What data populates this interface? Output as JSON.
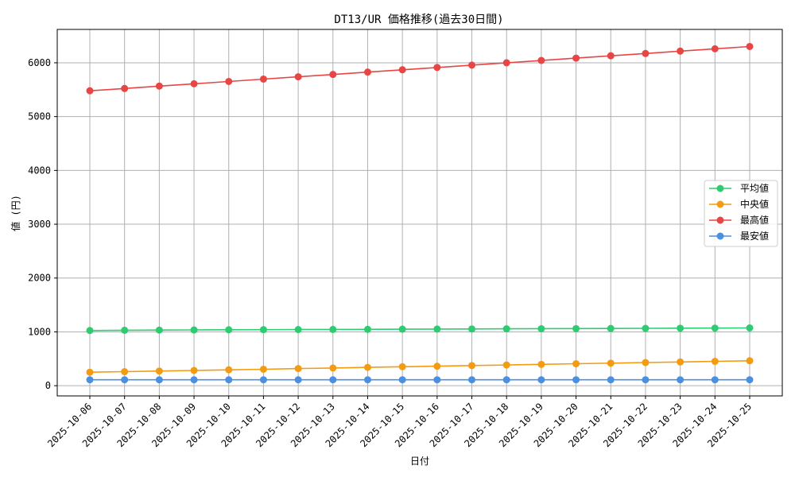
{
  "chart_data": {
    "type": "line",
    "title": "DT13/UR 価格推移(過去30日間)",
    "xlabel": "日付",
    "ylabel": "値 (円)",
    "ylim": [
      -190,
      6620
    ],
    "yticks": [
      0,
      1000,
      2000,
      3000,
      4000,
      5000,
      6000
    ],
    "grid": true,
    "legend_position": "center-right",
    "categories": [
      "2025-10-06",
      "2025-10-07",
      "2025-10-08",
      "2025-10-09",
      "2025-10-10",
      "2025-10-11",
      "2025-10-12",
      "2025-10-13",
      "2025-10-14",
      "2025-10-15",
      "2025-10-16",
      "2025-10-17",
      "2025-10-18",
      "2025-10-19",
      "2025-10-20",
      "2025-10-21",
      "2025-10-22",
      "2025-10-23",
      "2025-10-24",
      "2025-10-25"
    ],
    "series": [
      {
        "name": "平均値",
        "color": "#2ecc71",
        "values": [
          1025,
          1030,
          1033,
          1036,
          1039,
          1041,
          1043,
          1045,
          1047,
          1050,
          1052,
          1054,
          1057,
          1059,
          1061,
          1063,
          1065,
          1068,
          1070,
          1073
        ]
      },
      {
        "name": "中央値",
        "color": "#f39c12",
        "values": [
          250,
          260,
          272,
          283,
          295,
          305,
          318,
          328,
          340,
          352,
          362,
          374,
          385,
          396,
          408,
          418,
          430,
          441,
          452,
          463
        ]
      },
      {
        "name": "最高値",
        "color": "#e84545",
        "values": [
          5480,
          5523,
          5567,
          5610,
          5653,
          5697,
          5740,
          5783,
          5827,
          5870,
          5913,
          5957,
          6000,
          6043,
          6087,
          6130,
          6173,
          6217,
          6260,
          6303
        ]
      },
      {
        "name": "最安値",
        "color": "#4a90e2",
        "values": [
          110,
          110,
          110,
          110,
          110,
          110,
          110,
          110,
          110,
          110,
          110,
          110,
          110,
          110,
          110,
          110,
          110,
          110,
          110,
          110
        ]
      }
    ]
  }
}
